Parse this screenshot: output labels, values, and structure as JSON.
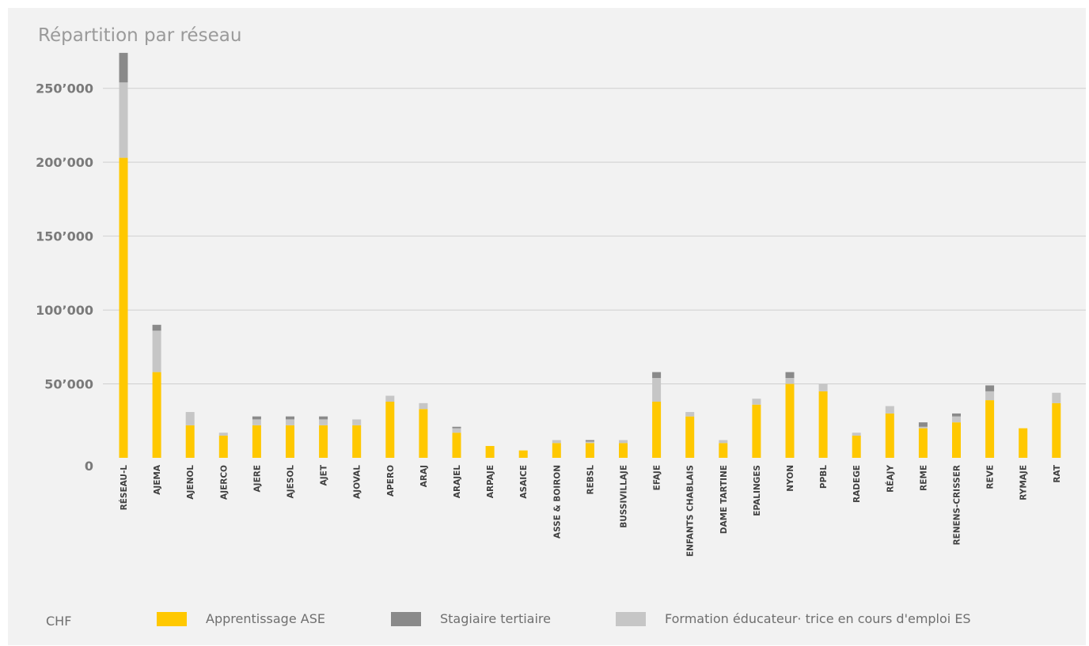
{
  "chart_data": {
    "type": "bar",
    "stacked": true,
    "title": "Répartition par réseau",
    "unit_label": "CHF",
    "ylim": [
      0,
      275000
    ],
    "yticks": [
      0,
      50000,
      100000,
      150000,
      200000,
      250000
    ],
    "ytick_labels": [
      "0",
      "50’000",
      "100’000",
      "150’000",
      "200’000",
      "250’000"
    ],
    "grid": true,
    "legend_position": "bottom",
    "categories": [
      "RÉSEAU-L",
      "AJEMA",
      "AJENOL",
      "AJERCO",
      "AJERE",
      "AJESOL",
      "AJET",
      "AJOVAL",
      "APERO",
      "ARAJ",
      "ARAJEL",
      "ARPAJE",
      "ASAICE",
      "ASSE & BOIRON",
      "REBSL",
      "BUSSIVILLAJE",
      "EFAJE",
      "ENFANTS CHABLAIS",
      "DAME TARTINE",
      "EPALINGES",
      "NYON",
      "PPBL",
      "RADEGE",
      "RÉAJY",
      "REME",
      "RENENS-CRISSER",
      "REVE",
      "RYMAJE",
      "RAT"
    ],
    "series": [
      {
        "name": "Apprentissage ASE",
        "color": "#ffc800",
        "values": [
          203000,
          58000,
          22000,
          15000,
          22000,
          22000,
          22000,
          22000,
          38000,
          33000,
          17000,
          8000,
          5000,
          10000,
          10000,
          10000,
          38000,
          28000,
          10000,
          36000,
          50000,
          45000,
          15000,
          30000,
          20000,
          24000,
          39000,
          20000,
          37000
        ]
      },
      {
        "name": "Formation éducateur· trice en cours d'emploi ES",
        "color": "#c6c6c6",
        "values": [
          51000,
          28000,
          9000,
          2000,
          4000,
          4000,
          4000,
          4000,
          4000,
          4000,
          3000,
          0,
          0,
          2000,
          1000,
          2000,
          16000,
          3000,
          2000,
          4000,
          4000,
          5000,
          2000,
          5000,
          1000,
          4000,
          6000,
          0,
          7000
        ]
      },
      {
        "name": "Stagiaire tertiaire",
        "color": "#8a8a8a",
        "values": [
          20000,
          4000,
          0,
          0,
          2000,
          2000,
          2000,
          0,
          0,
          0,
          1000,
          0,
          0,
          0,
          1000,
          0,
          4000,
          0,
          0,
          0,
          4000,
          0,
          0,
          0,
          3000,
          2000,
          4000,
          0,
          0
        ]
      }
    ]
  },
  "legend_order": [
    0,
    2,
    1
  ]
}
